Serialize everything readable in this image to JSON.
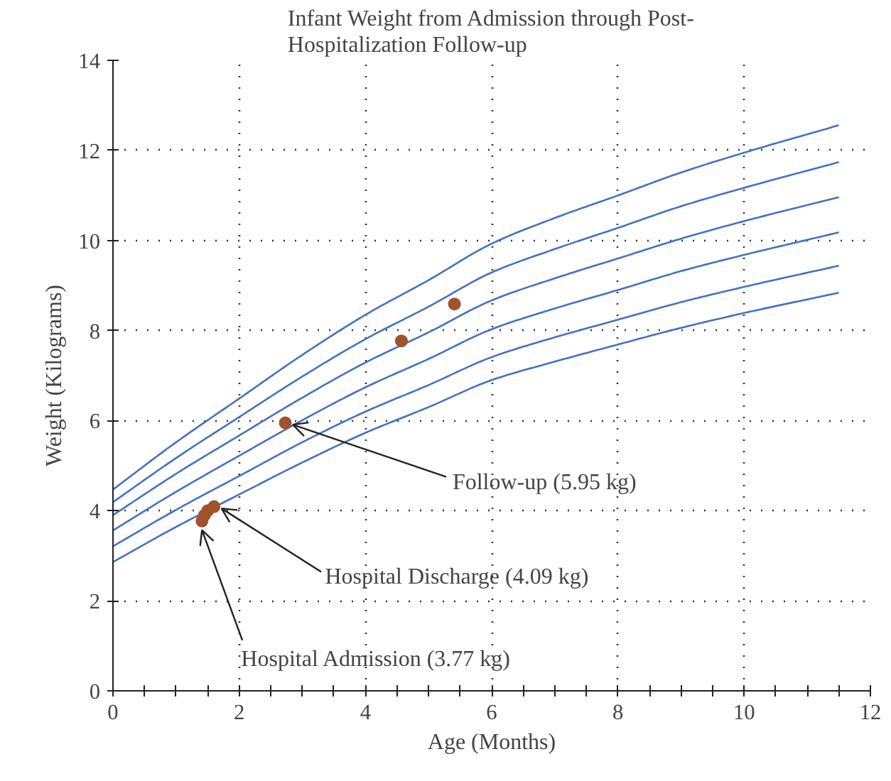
{
  "chart_data": {
    "type": "line",
    "title": "Infant Weight from Admission through Post-\nHospitalization Follow-up",
    "xlabel": "Age (Months)",
    "ylabel": "Weight (Kilograms)",
    "xlim": [
      0,
      12
    ],
    "ylim": [
      0,
      14
    ],
    "xticks": [
      0,
      2,
      4,
      6,
      8,
      10,
      12
    ],
    "yticks": [
      0,
      2,
      4,
      6,
      8,
      10,
      12,
      14
    ],
    "grid": true,
    "marker": "none",
    "line_style": "solid",
    "series": [
      {
        "color": "#4472c4",
        "x": [
          0,
          1,
          2,
          3,
          4,
          5,
          6,
          7,
          8,
          9,
          10,
          11.5
        ],
        "values": [
          4.47,
          5.52,
          6.49,
          7.46,
          8.35,
          9.12,
          9.93,
          10.5,
          11.0,
          11.51,
          11.95,
          12.56
        ]
      },
      {
        "color": "#4472c4",
        "x": [
          0,
          1,
          2,
          3,
          4,
          5,
          6,
          7,
          8,
          9,
          10,
          11.5
        ],
        "values": [
          4.19,
          5.17,
          6.08,
          6.98,
          7.81,
          8.53,
          9.29,
          9.81,
          10.28,
          10.76,
          11.17,
          11.74
        ]
      },
      {
        "color": "#4472c4",
        "x": [
          0,
          1,
          2,
          3,
          4,
          5,
          6,
          7,
          8,
          9,
          10,
          11.5
        ],
        "values": [
          3.9,
          4.82,
          5.67,
          6.51,
          7.29,
          7.96,
          8.67,
          9.16,
          9.6,
          10.04,
          10.43,
          10.96
        ]
      },
      {
        "color": "#4472c4",
        "x": [
          0,
          1,
          2,
          3,
          4,
          5,
          6,
          7,
          8,
          9,
          10,
          11.5
        ],
        "values": [
          3.56,
          4.42,
          5.22,
          6.01,
          6.74,
          7.37,
          8.03,
          8.49,
          8.9,
          9.32,
          9.68,
          10.18
        ]
      },
      {
        "color": "#4472c4",
        "x": [
          0,
          1,
          2,
          3,
          4,
          5,
          6,
          7,
          8,
          9,
          10,
          11.5
        ],
        "values": [
          3.21,
          4.02,
          4.77,
          5.52,
          6.2,
          6.79,
          7.41,
          7.85,
          8.24,
          8.63,
          8.97,
          9.44
        ]
      },
      {
        "color": "#4472c4",
        "x": [
          0,
          1,
          2,
          3,
          4,
          5,
          6,
          7,
          8,
          9,
          10,
          11.5
        ],
        "values": [
          2.86,
          3.64,
          4.36,
          5.07,
          5.73,
          6.3,
          6.9,
          7.31,
          7.69,
          8.06,
          8.39,
          8.84
        ]
      },
      {
        "type": "scatter",
        "marker": "circle",
        "color": "#a0522d",
        "x": [
          1.41,
          1.45,
          1.5,
          1.6,
          2.73,
          4.57,
          5.41
        ],
        "values": [
          3.77,
          3.9,
          4.0,
          4.09,
          5.95,
          7.77,
          8.59
        ]
      }
    ],
    "annotations": [
      {
        "text": "Hospital Admission (3.77 kg)",
        "x": 1.41,
        "y": 3.77
      },
      {
        "text": "Hospital Discharge (4.09 kg)",
        "x": 1.6,
        "y": 4.09
      },
      {
        "text": "Follow-up (5.95 kg)",
        "x": 2.73,
        "y": 5.95
      }
    ]
  }
}
